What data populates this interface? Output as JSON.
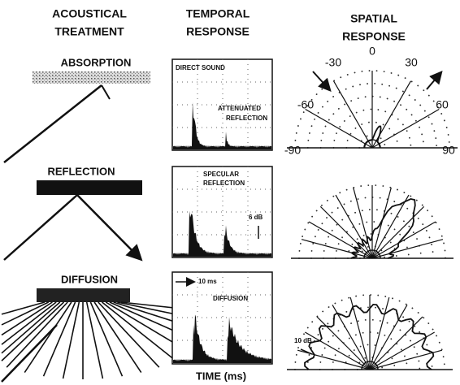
{
  "headers": [
    [
      "ACOUSTICAL",
      "TREATMENT"
    ],
    [
      "TEMPORAL",
      "RESPONSE"
    ],
    [
      "SPATIAL",
      "RESPONSE"
    ]
  ],
  "rows": [
    {
      "treatment": "ABSORPTION",
      "temporal": [
        "DIRECT SOUND",
        "ATTENUATED",
        "REFLECTION"
      ],
      "spatial": [
        "0",
        "-30",
        "30",
        "-60",
        "60",
        "-90",
        "90"
      ]
    },
    {
      "treatment": "REFLECTION",
      "temporal": [
        "SPECULAR",
        "REFLECTION",
        "6 dB"
      ]
    },
    {
      "treatment": "DIFFUSION",
      "temporal": [
        "10 ms",
        "DIFFUSION"
      ],
      "spatial": [
        "10 dB"
      ]
    }
  ],
  "x_axis_label": "TIME (ms)"
}
